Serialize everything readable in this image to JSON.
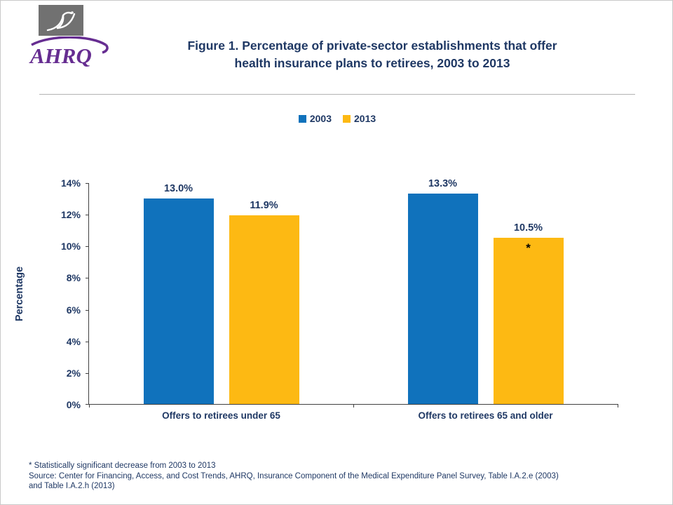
{
  "header": {
    "title_line1": "Figure 1. Percentage of private-sector establishments that offer",
    "title_line2": "health insurance plans to retirees, 2003 to 2013",
    "brand": "AHRQ"
  },
  "colors": {
    "navy": "#1F3864",
    "bar_2003": "#1072BC",
    "bar_2013": "#FDB913",
    "logo_purple": "#662D91",
    "hhs_box_gray": "#717171"
  },
  "chart_data": {
    "type": "bar",
    "title": "Figure 1. Percentage of private-sector establishments that offer health insurance plans to retirees, 2003 to 2013",
    "categories": [
      "Offers to retirees under 65",
      "Offers to retirees 65 and older"
    ],
    "series": [
      {
        "name": "2003",
        "color": "#1072BC",
        "values": [
          13.0,
          13.3
        ],
        "labels": [
          "13.0%",
          "13.3%"
        ],
        "annotations": [
          "",
          ""
        ]
      },
      {
        "name": "2013",
        "color": "#FDB913",
        "values": [
          11.9,
          10.5
        ],
        "labels": [
          "11.9%",
          "10.5%"
        ],
        "annotations": [
          "",
          "*"
        ]
      }
    ],
    "ylabel": "Percentage",
    "ylim": [
      0,
      14
    ],
    "yticks": [
      "0%",
      "2%",
      "4%",
      "6%",
      "8%",
      "10%",
      "12%",
      "14%"
    ],
    "grid": false,
    "legend_position": "top-center"
  },
  "footnotes": [
    "* Statistically significant decrease from 2003 to 2013",
    "Source: Center for Financing, Access, and Cost Trends, AHRQ, Insurance Component of the Medical Expenditure Panel Survey,  Table I.A.2.e  (2003)",
    "and Table I.A.2.h  (2013)"
  ]
}
